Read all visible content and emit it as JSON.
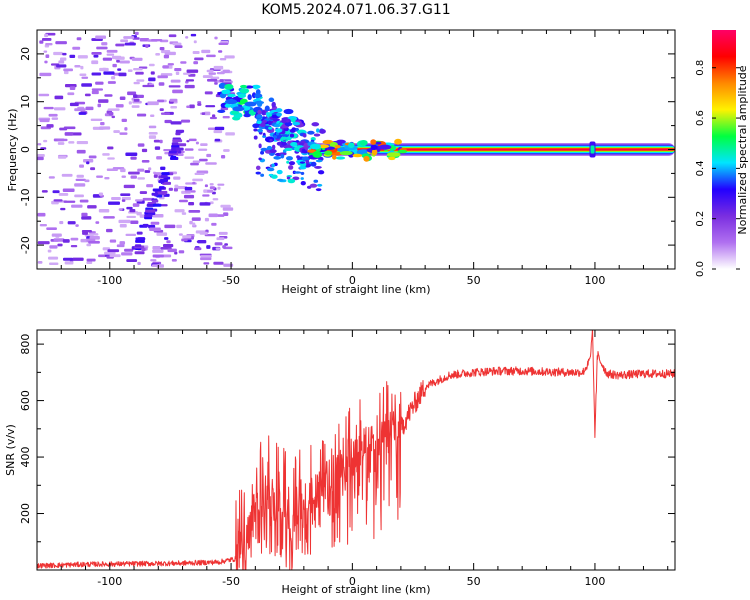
{
  "title": "KOM5.2024.071.06.37.G11",
  "chart_data": [
    {
      "type": "heatmap",
      "xlabel": "Height of straight line (km)",
      "ylabel": "Frequency (Hz)",
      "xlim": [
        -130,
        133
      ],
      "ylim": [
        -25,
        25
      ],
      "xticks": [
        -100,
        -50,
        0,
        50,
        100
      ],
      "yticks": [
        -20,
        -10,
        0,
        10,
        20
      ],
      "colorbar": {
        "label": "Normalized spectral amplitude",
        "range": [
          0,
          0.95
        ],
        "ticks": [
          "0.0",
          "0.2",
          "0.4",
          "0.6",
          "0.8"
        ],
        "tick_values": [
          0.0,
          0.2,
          0.4,
          0.6,
          0.8
        ],
        "colors": [
          "#ffffff",
          "#b070f0",
          "#7a2ee0",
          "#2200ff",
          "#00e5ff",
          "#00ff40",
          "#fff200",
          "#ff8800",
          "#ff0000",
          "#ff0066"
        ]
      },
      "features": {
        "carrier_frequency_hz": 0,
        "carrier_start_height_km": -17,
        "carrier_amplitude": 0.85,
        "noise_region_km": [
          -130,
          -60
        ],
        "transition_region_km": [
          -55,
          -15
        ],
        "transition_blob_centers": [
          {
            "x": -50,
            "y": 10
          },
          {
            "x": -42,
            "y": 10
          },
          {
            "x": -36,
            "y": 8
          },
          {
            "x": -30,
            "y": 5
          },
          {
            "x": -25,
            "y": 3
          },
          {
            "x": -20,
            "y": 0
          }
        ],
        "glitch_height_km": 99
      }
    },
    {
      "type": "line",
      "xlabel": "Height of straight line (km)",
      "ylabel": "SNR (v/v)",
      "xlim": [
        -130,
        133
      ],
      "ylim": [
        0,
        850
      ],
      "xticks": [
        -100,
        -50,
        0,
        50,
        100
      ],
      "yticks": [
        200,
        400,
        600,
        800
      ],
      "color": "#ee3333",
      "x": [
        -130,
        -110,
        -90,
        -70,
        -55,
        -48,
        -45,
        -40,
        -35,
        -30,
        -25,
        -20,
        -15,
        -10,
        -5,
        0,
        5,
        10,
        15,
        20,
        25,
        30,
        40,
        50,
        60,
        70,
        80,
        90,
        95,
        98,
        99,
        100,
        101,
        105,
        110,
        120,
        133
      ],
      "values": [
        15,
        20,
        22,
        24,
        28,
        40,
        90,
        220,
        260,
        230,
        200,
        240,
        270,
        330,
        390,
        420,
        450,
        480,
        520,
        500,
        580,
        650,
        690,
        700,
        705,
        705,
        702,
        700,
        700,
        740,
        840,
        470,
        760,
        695,
        690,
        695,
        695
      ]
    }
  ]
}
